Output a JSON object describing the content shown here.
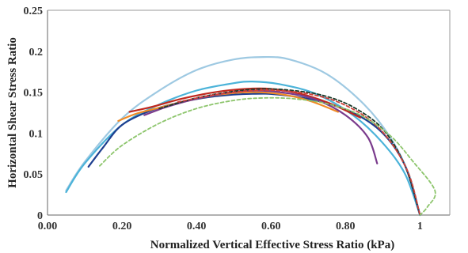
{
  "chart_data": {
    "type": "line",
    "title": "",
    "xlabel": "Normalized Vertical Effective Stress Ratio  (kPa)",
    "ylabel": "Horizontal Shear Stress Ratio",
    "xlim": [
      0,
      1.08
    ],
    "ylim": [
      0,
      0.25
    ],
    "x_ticks": [
      "0.00",
      "0.20",
      "0.40",
      "0.60",
      "0.80",
      "1"
    ],
    "x_tick_values": [
      0.0,
      0.2,
      0.4,
      0.6,
      0.8,
      1.0
    ],
    "y_ticks": [
      "0",
      "0.05",
      "0.1",
      "0.15",
      "0.2",
      "0.25"
    ],
    "y_tick_values": [
      0,
      0.05,
      0.1,
      0.15,
      0.2,
      0.25
    ],
    "grid": false,
    "legend": "none",
    "series": [
      {
        "color": "#9ec9e2",
        "style": "solid",
        "x": [
          0.05,
          0.1,
          0.2,
          0.3,
          0.4,
          0.5,
          0.58,
          0.65,
          0.75,
          0.85,
          0.92,
          0.97,
          1.0
        ],
        "y": [
          0.03,
          0.065,
          0.118,
          0.152,
          0.177,
          0.19,
          0.193,
          0.19,
          0.172,
          0.135,
          0.095,
          0.05,
          0.0
        ]
      },
      {
        "color": "#4bb3d9",
        "style": "solid",
        "x": [
          0.05,
          0.1,
          0.2,
          0.3,
          0.4,
          0.5,
          0.55,
          0.62,
          0.72,
          0.82,
          0.9,
          0.96,
          1.0
        ],
        "y": [
          0.028,
          0.063,
          0.11,
          0.135,
          0.152,
          0.161,
          0.163,
          0.16,
          0.148,
          0.122,
          0.088,
          0.05,
          0.0
        ]
      },
      {
        "color": "#1e3f8f",
        "style": "solid",
        "x": [
          0.11,
          0.15,
          0.2,
          0.28,
          0.36,
          0.45,
          0.55,
          0.62,
          0.72,
          0.82,
          0.9,
          0.96,
          1.0
        ],
        "y": [
          0.059,
          0.083,
          0.11,
          0.128,
          0.138,
          0.145,
          0.148,
          0.147,
          0.14,
          0.125,
          0.1,
          0.06,
          0.0
        ]
      },
      {
        "color": "#c0281e",
        "style": "solid",
        "x": [
          0.22,
          0.28,
          0.36,
          0.45,
          0.53,
          0.6,
          0.68,
          0.76,
          0.84
        ],
        "y": [
          0.126,
          0.132,
          0.142,
          0.15,
          0.154,
          0.154,
          0.148,
          0.136,
          0.119
        ]
      },
      {
        "color": "#f08a24",
        "style": "solid",
        "x": [
          0.19,
          0.24,
          0.3,
          0.38,
          0.46,
          0.54,
          0.62,
          0.7,
          0.78
        ],
        "y": [
          0.115,
          0.124,
          0.131,
          0.14,
          0.147,
          0.15,
          0.148,
          0.14,
          0.126
        ]
      },
      {
        "color": "#7a3b8c",
        "style": "solid",
        "x": [
          0.26,
          0.32,
          0.4,
          0.48,
          0.56,
          0.64,
          0.72,
          0.8,
          0.86,
          0.885
        ],
        "y": [
          0.122,
          0.132,
          0.142,
          0.149,
          0.152,
          0.149,
          0.141,
          0.122,
          0.095,
          0.063
        ]
      },
      {
        "color": "#1a3a2a",
        "style": "dashed",
        "x": [
          0.3,
          0.4,
          0.5,
          0.58,
          0.66,
          0.74,
          0.82,
          0.9,
          0.96,
          1.0
        ],
        "y": [
          0.13,
          0.143,
          0.151,
          0.154,
          0.152,
          0.146,
          0.132,
          0.105,
          0.06,
          0.0
        ]
      },
      {
        "color": "#d0423a",
        "style": "dashed",
        "x": [
          0.35,
          0.45,
          0.55,
          0.62,
          0.7,
          0.78,
          0.86,
          0.92,
          0.97,
          1.0
        ],
        "y": [
          0.138,
          0.147,
          0.152,
          0.152,
          0.148,
          0.138,
          0.118,
          0.09,
          0.05,
          0.0
        ]
      },
      {
        "color": "#8dc56c",
        "style": "dashed",
        "x": [
          0.14,
          0.2,
          0.3,
          0.4,
          0.5,
          0.58,
          0.66,
          0.75,
          0.84,
          0.92,
          0.98,
          1.04,
          1.02,
          1.0
        ],
        "y": [
          0.06,
          0.085,
          0.112,
          0.13,
          0.14,
          0.143,
          0.142,
          0.136,
          0.122,
          0.097,
          0.066,
          0.03,
          0.01,
          0.0
        ]
      }
    ]
  }
}
